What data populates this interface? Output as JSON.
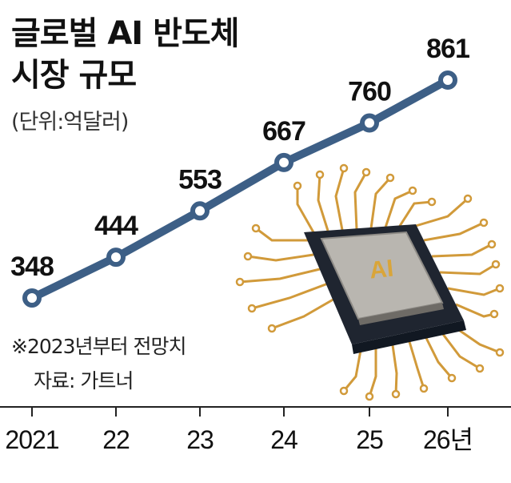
{
  "chart_data": {
    "type": "line",
    "title_lines": [
      "글로벌 AI 반도체",
      "시장 규모"
    ],
    "unit_label": "(단위:억달러)",
    "categories": [
      "2021",
      "22",
      "23",
      "24",
      "25",
      "26년"
    ],
    "values": [
      348,
      444,
      553,
      667,
      760,
      861
    ],
    "value_labels": [
      "348",
      "444",
      "553",
      "667",
      "760",
      "861"
    ],
    "ylim": [
      300,
      900
    ],
    "grid": false,
    "line_color": "#3d5f86",
    "chip_label": "AI"
  },
  "notes": {
    "forecast": "※2023년부터 전망치",
    "source": "자료: 가트너"
  }
}
